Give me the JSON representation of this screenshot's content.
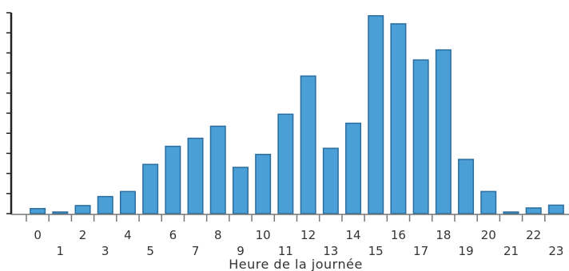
{
  "chart_data": {
    "type": "bar",
    "xlabel": "Heure de la journée",
    "ylabel": "",
    "categories": [
      "0",
      "1",
      "2",
      "3",
      "4",
      "5",
      "6",
      "7",
      "8",
      "9",
      "10",
      "11",
      "12",
      "13",
      "14",
      "15",
      "16",
      "17",
      "18",
      "19",
      "20",
      "21",
      "22",
      "23"
    ],
    "values": [
      0.25,
      0.08,
      0.4,
      0.85,
      1.1,
      2.45,
      3.35,
      3.75,
      4.35,
      2.3,
      2.95,
      4.95,
      6.85,
      3.25,
      4.5,
      9.85,
      9.45,
      7.65,
      8.15,
      2.7,
      1.1,
      0.08,
      0.28,
      0.42
    ],
    "ylim": [
      0,
      10
    ],
    "grid": false,
    "legend": "none",
    "bar_color": "#4a9fd6",
    "bar_edge_color": "#2a6d9e"
  }
}
